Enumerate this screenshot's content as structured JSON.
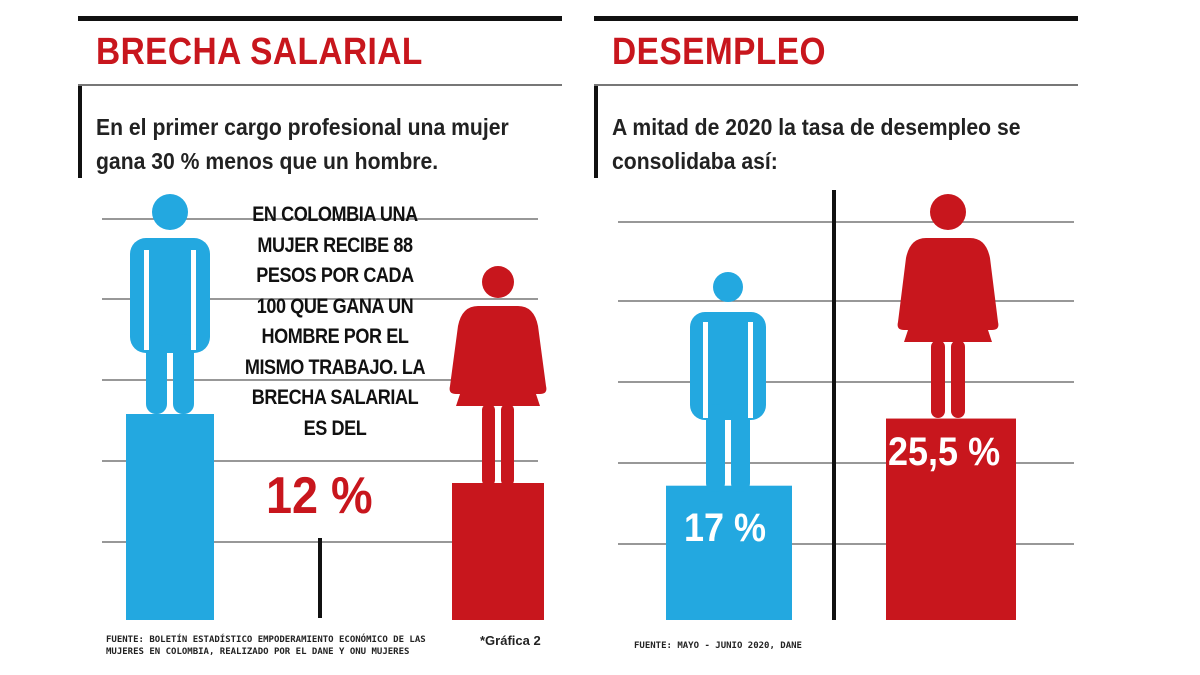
{
  "colors": {
    "accent_red": "#c8161d",
    "male_blue": "#23a8e0",
    "female_red": "#c8161d",
    "text_dark": "#222222"
  },
  "panels": {
    "brecha": {
      "title": "BRECHA SALARIAL",
      "subtitle": "En el primer cargo profesional una mujer gana 30 % menos que un hombre.",
      "callout": "EN COLOMBIA UNA MUJER RECIBE 88 PESOS POR CADA 100 QUE GANA UN HOMBRE POR EL MISMO TRABAJO. LA BRECHA SALARIAL ES DEL",
      "gap_label": "12 %",
      "source_line1": "FUENTE: BOLETÍN ESTADÍSTICO EMPODERAMIENTO ECONÓMICO DE LAS",
      "source_line2": "MUJERES EN COLOMBIA, REALIZADO POR EL DANE Y ONU MUJERES",
      "note": "*Gráfica 2"
    },
    "desempleo": {
      "title": "DESEMPLEO",
      "subtitle": "A mitad de 2020 la tasa de desempleo se consolidaba así:",
      "male_label": "17 %",
      "female_label": "25,5 %",
      "source": "FUENTE: MAYO - JUNIO 2020, DANE"
    }
  },
  "chart_data": [
    {
      "type": "bar",
      "categories": [
        "hombre",
        "mujer"
      ],
      "values": [
        100,
        88
      ],
      "icons": [
        "man-icon",
        "woman-icon"
      ],
      "annotation": "12 %"
    },
    {
      "type": "bar",
      "categories": [
        "hombre",
        "mujer"
      ],
      "values": [
        17,
        25.5
      ],
      "value_labels": [
        "17 %",
        "25,5 %"
      ],
      "icons": [
        "man-icon",
        "woman-icon"
      ]
    }
  ]
}
